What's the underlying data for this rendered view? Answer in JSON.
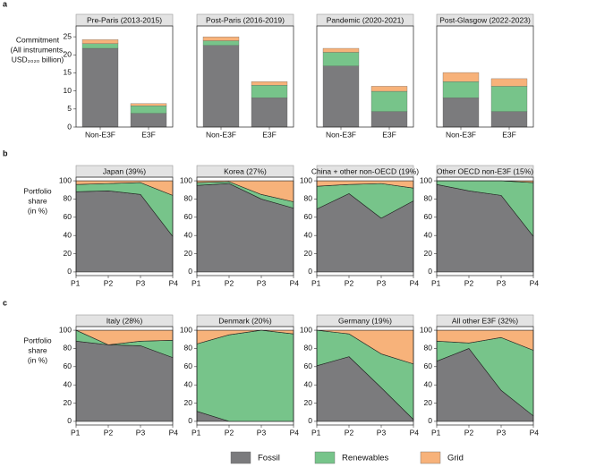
{
  "chart_data": [
    {
      "type": "bar",
      "panel": "a",
      "title": "Pre-Paris (2013-2015)",
      "ylabel": [
        "Commitment",
        "(All instruments,",
        "USD₂₀₂₀ billion)"
      ],
      "categories": [
        "Non-E3F",
        "E3F"
      ],
      "ylim": [
        0,
        28
      ],
      "yticks": [
        0,
        5,
        10,
        15,
        20,
        25
      ],
      "series": [
        {
          "name": "Fossil",
          "color": "#7b7b7d",
          "values": [
            21.8,
            3.8
          ]
        },
        {
          "name": "Renewables",
          "color": "#77c48a",
          "values": [
            1.3,
            2.1
          ]
        },
        {
          "name": "Grid",
          "color": "#f7b27a",
          "values": [
            1.1,
            0.6
          ]
        }
      ]
    },
    {
      "type": "bar",
      "title": "Post-Paris (2016-2019)",
      "categories": [
        "Non-E3F",
        "E3F"
      ],
      "ylim": [
        0,
        28
      ],
      "series": [
        {
          "name": "Fossil",
          "color": "#7b7b7d",
          "values": [
            22.6,
            8.1
          ]
        },
        {
          "name": "Renewables",
          "color": "#77c48a",
          "values": [
            1.3,
            3.5
          ]
        },
        {
          "name": "Grid",
          "color": "#f7b27a",
          "values": [
            1.1,
            1.0
          ]
        }
      ]
    },
    {
      "type": "bar",
      "title": "Pandemic (2020-2021)",
      "categories": [
        "Non-E3F",
        "E3F"
      ],
      "ylim": [
        0,
        28
      ],
      "series": [
        {
          "name": "Fossil",
          "color": "#7b7b7d",
          "values": [
            16.9,
            4.3
          ]
        },
        {
          "name": "Renewables",
          "color": "#77c48a",
          "values": [
            3.8,
            5.6
          ]
        },
        {
          "name": "Grid",
          "color": "#f7b27a",
          "values": [
            1.1,
            1.4
          ]
        }
      ]
    },
    {
      "type": "bar",
      "title": "Post-Glasgow (2022-2023)",
      "categories": [
        "Non-E3F",
        "E3F"
      ],
      "ylim": [
        0,
        28
      ],
      "series": [
        {
          "name": "Fossil",
          "color": "#7b7b7d",
          "values": [
            8.1,
            4.3
          ]
        },
        {
          "name": "Renewables",
          "color": "#77c48a",
          "values": [
            4.5,
            7.0
          ]
        },
        {
          "name": "Grid",
          "color": "#f7b27a",
          "values": [
            2.5,
            2.1
          ]
        }
      ]
    },
    {
      "type": "area",
      "panel": "b",
      "title": "Japan (39%)",
      "ylabel": [
        "Portfolio",
        "share",
        "(in %)"
      ],
      "categories": [
        "P1",
        "P2",
        "P3",
        "P4"
      ],
      "ylim": [
        -4,
        104
      ],
      "yticks": [
        0,
        20,
        40,
        60,
        80,
        100
      ],
      "series": [
        {
          "name": "Fossil",
          "color": "#7b7b7d",
          "values": [
            88,
            89,
            85,
            39
          ]
        },
        {
          "name": "Renewables",
          "color": "#77c48a",
          "values": [
            8,
            8,
            13,
            45
          ]
        },
        {
          "name": "Grid",
          "color": "#f7b27a",
          "values": [
            4,
            3,
            2,
            16
          ]
        }
      ]
    },
    {
      "type": "area",
      "title": "Korea (27%)",
      "categories": [
        "P1",
        "P2",
        "P3",
        "P4"
      ],
      "ylim": [
        -4,
        104
      ],
      "yticks": [
        0,
        20,
        40,
        60,
        80,
        100
      ],
      "series": [
        {
          "name": "Fossil",
          "color": "#7b7b7d",
          "values": [
            95,
            97,
            80,
            70
          ]
        },
        {
          "name": "Renewables",
          "color": "#77c48a",
          "values": [
            3,
            2,
            5,
            7
          ]
        },
        {
          "name": "Grid",
          "color": "#f7b27a",
          "values": [
            2,
            1,
            15,
            23
          ]
        }
      ]
    },
    {
      "type": "area",
      "title": "China + other non-OECD (19%)",
      "categories": [
        "P1",
        "P2",
        "P3",
        "P4"
      ],
      "ylim": [
        -4,
        104
      ],
      "yticks": [
        0,
        20,
        40,
        60,
        80,
        100
      ],
      "series": [
        {
          "name": "Fossil",
          "color": "#7b7b7d",
          "values": [
            69,
            86,
            59,
            78
          ]
        },
        {
          "name": "Renewables",
          "color": "#77c48a",
          "values": [
            25,
            10,
            38,
            14
          ]
        },
        {
          "name": "Grid",
          "color": "#f7b27a",
          "values": [
            6,
            4,
            3,
            8
          ]
        }
      ]
    },
    {
      "type": "area",
      "title": "Other OECD non-E3F (15%)",
      "categories": [
        "P1",
        "P2",
        "P3",
        "P4"
      ],
      "ylim": [
        -4,
        104
      ],
      "yticks": [
        0,
        20,
        40,
        60,
        80,
        100
      ],
      "series": [
        {
          "name": "Fossil",
          "color": "#7b7b7d",
          "values": [
            96,
            89,
            84,
            39
          ]
        },
        {
          "name": "Renewables",
          "color": "#77c48a",
          "values": [
            4,
            11,
            16,
            59
          ]
        },
        {
          "name": "Grid",
          "color": "#f7b27a",
          "values": [
            0,
            0,
            0,
            2
          ]
        }
      ]
    },
    {
      "type": "area",
      "panel": "c",
      "title": "Italy (28%)",
      "ylabel": [
        "Portfolio",
        "share",
        "(in %)"
      ],
      "categories": [
        "P1",
        "P2",
        "P3",
        "P4"
      ],
      "ylim": [
        -4,
        104
      ],
      "yticks": [
        0,
        20,
        40,
        60,
        80,
        100
      ],
      "series": [
        {
          "name": "Fossil",
          "color": "#7b7b7d",
          "values": [
            88,
            84,
            83,
            70
          ]
        },
        {
          "name": "Renewables",
          "color": "#77c48a",
          "values": [
            12,
            0,
            5,
            19
          ]
        },
        {
          "name": "Grid",
          "color": "#f7b27a",
          "values": [
            0,
            16,
            12,
            11
          ]
        }
      ]
    },
    {
      "type": "area",
      "title": "Denmark (20%)",
      "categories": [
        "P1",
        "P2",
        "P3",
        "P4"
      ],
      "ylim": [
        -4,
        104
      ],
      "yticks": [
        0,
        20,
        40,
        60,
        80,
        100
      ],
      "series": [
        {
          "name": "Fossil",
          "color": "#7b7b7d",
          "values": [
            11,
            0,
            0,
            0
          ]
        },
        {
          "name": "Renewables",
          "color": "#77c48a",
          "values": [
            74,
            95,
            100,
            96
          ]
        },
        {
          "name": "Grid",
          "color": "#f7b27a",
          "values": [
            15,
            5,
            0,
            4
          ]
        }
      ]
    },
    {
      "type": "area",
      "title": "Germany (19%)",
      "categories": [
        "P1",
        "P2",
        "P3",
        "P4"
      ],
      "ylim": [
        -4,
        104
      ],
      "yticks": [
        0,
        20,
        40,
        60,
        80,
        100
      ],
      "series": [
        {
          "name": "Fossil",
          "color": "#7b7b7d",
          "values": [
            61,
            71,
            37,
            2
          ]
        },
        {
          "name": "Renewables",
          "color": "#77c48a",
          "values": [
            39,
            25,
            37,
            61
          ]
        },
        {
          "name": "Grid",
          "color": "#f7b27a",
          "values": [
            0,
            4,
            26,
            37
          ]
        }
      ]
    },
    {
      "type": "area",
      "title": "All other E3F (32%)",
      "categories": [
        "P1",
        "P2",
        "P3",
        "P4"
      ],
      "ylim": [
        -4,
        104
      ],
      "yticks": [
        0,
        20,
        40,
        60,
        80,
        100
      ],
      "series": [
        {
          "name": "Fossil",
          "color": "#7b7b7d",
          "values": [
            66,
            80,
            34,
            6
          ]
        },
        {
          "name": "Renewables",
          "color": "#77c48a",
          "values": [
            22,
            6,
            58,
            72
          ]
        },
        {
          "name": "Grid",
          "color": "#f7b27a",
          "values": [
            12,
            14,
            8,
            22
          ]
        }
      ]
    }
  ]
}
